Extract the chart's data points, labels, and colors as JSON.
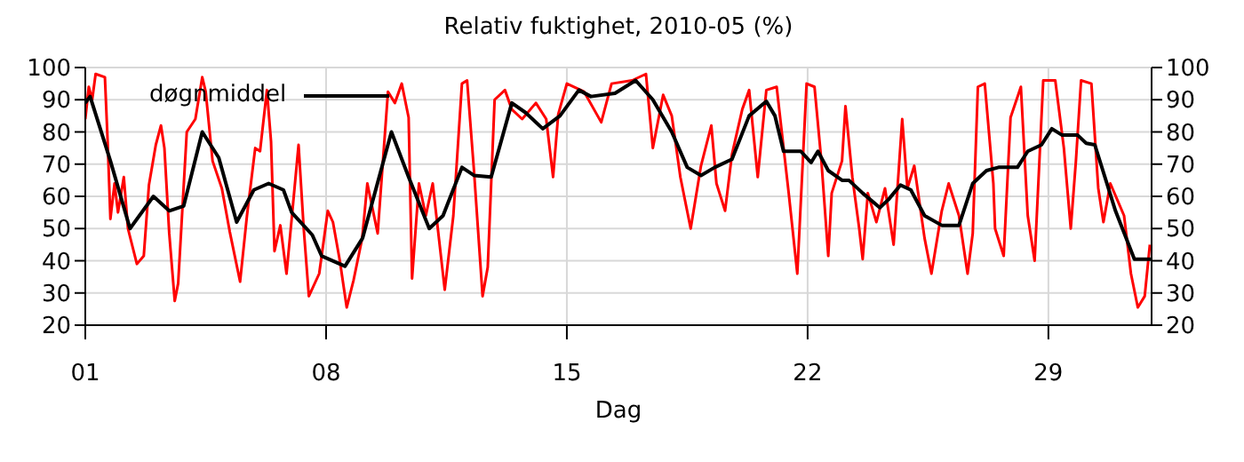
{
  "chart_data": {
    "type": "line",
    "title": "Relativ fuktighet, 2010-05 (%)",
    "xlabel": "Dag",
    "xlim": [
      1,
      32
    ],
    "xticks": [
      {
        "value": 1,
        "label": "01"
      },
      {
        "value": 8,
        "label": "08"
      },
      {
        "value": 15,
        "label": "15"
      },
      {
        "value": 22,
        "label": "22"
      },
      {
        "value": 29,
        "label": "29"
      }
    ],
    "ylim": [
      20,
      100
    ],
    "yticks": [
      20,
      30,
      40,
      50,
      60,
      70,
      80,
      90,
      100
    ],
    "y2lim": [
      20,
      100
    ],
    "y2ticks": [
      20,
      30,
      40,
      50,
      60,
      70,
      80,
      90,
      100
    ],
    "grid": true,
    "legend": "top left",
    "marker": "none",
    "line_style": "solid",
    "series": [
      {
        "color": "#ff0000",
        "x": [
          1.0,
          1.1,
          1.2,
          1.3,
          1.57,
          1.65,
          1.73,
          1.85,
          1.95,
          2.12,
          2.24,
          2.5,
          2.7,
          2.85,
          3.05,
          3.2,
          3.3,
          3.44,
          3.6,
          3.7,
          3.95,
          4.2,
          4.4,
          4.5,
          4.7,
          4.97,
          5.2,
          5.5,
          5.7,
          5.94,
          6.08,
          6.28,
          6.4,
          6.5,
          6.67,
          6.85,
          7.0,
          7.2,
          7.35,
          7.5,
          7.8,
          8.05,
          8.2,
          8.4,
          8.6,
          8.8,
          9.05,
          9.2,
          9.5,
          9.8,
          10.0,
          10.2,
          10.4,
          10.5,
          10.7,
          10.9,
          11.1,
          11.45,
          11.7,
          11.95,
          12.1,
          12.3,
          12.55,
          12.7,
          12.9,
          13.2,
          13.4,
          13.7,
          14.1,
          14.4,
          14.6,
          14.75,
          15.0,
          15.5,
          16.0,
          16.3,
          16.9,
          17.3,
          17.5,
          17.8,
          18.05,
          18.3,
          18.6,
          18.9,
          19.2,
          19.35,
          19.6,
          19.8,
          20.1,
          20.3,
          20.55,
          20.8,
          21.1,
          21.45,
          21.7,
          21.97,
          22.2,
          22.4,
          22.6,
          22.7,
          23.0,
          23.1,
          23.3,
          23.5,
          23.6,
          23.75,
          24.0,
          24.25,
          24.5,
          24.75,
          24.9,
          25.1,
          25.4,
          25.6,
          25.9,
          26.1,
          26.4,
          26.65,
          26.8,
          26.95,
          27.15,
          27.4,
          27.45,
          27.7,
          27.9,
          28.2,
          28.4,
          28.6,
          28.85,
          29.2,
          29.45,
          29.65,
          29.8,
          29.95,
          30.25,
          30.45,
          30.6,
          30.8,
          31.0,
          31.2,
          31.4,
          31.6,
          31.8,
          31.95
        ],
        "values": [
          84,
          94,
          90,
          98,
          97,
          77,
          53,
          64,
          55,
          66,
          50,
          39,
          41.5,
          63.5,
          76,
          82,
          75,
          48.5,
          27.5,
          33,
          80,
          84,
          97,
          92.5,
          71,
          62.5,
          49,
          33.5,
          54,
          75,
          74,
          93,
          77,
          43,
          51,
          36,
          53,
          76,
          50,
          29,
          36,
          55.5,
          52,
          40,
          25.5,
          34,
          47,
          64,
          48.5,
          92.5,
          89,
          95,
          84.5,
          34.5,
          64,
          54,
          64,
          31,
          54,
          95,
          96,
          68,
          29,
          38,
          90,
          93,
          87,
          84,
          89,
          84,
          66,
          85.5,
          95,
          92.5,
          83,
          95,
          96,
          98,
          75,
          91.5,
          85,
          66,
          50,
          69.5,
          82,
          64,
          55.5,
          73,
          87,
          93,
          66,
          93,
          94,
          61,
          36,
          95,
          94,
          71,
          41.5,
          61,
          71,
          88,
          66,
          50,
          40.5,
          61,
          52,
          62.5,
          45,
          84,
          62.5,
          69.5,
          47,
          36,
          55.5,
          64,
          54,
          36,
          48.5,
          94,
          95,
          64,
          50,
          41.5,
          84.5,
          94,
          54,
          40,
          96,
          96,
          75,
          50,
          71,
          96,
          95,
          62.5,
          52,
          64,
          59,
          54,
          36,
          25.5,
          29,
          45
        ]
      },
      {
        "name": "døgnmiddel",
        "color": "#000000",
        "x": [
          1.0,
          1.14,
          1.73,
          2.3,
          2.98,
          3.44,
          3.86,
          4.4,
          4.88,
          5.4,
          5.9,
          6.33,
          6.76,
          7.0,
          7.6,
          7.87,
          8.55,
          9.06,
          9.9,
          10.4,
          11.0,
          11.4,
          11.95,
          12.3,
          12.8,
          13.4,
          13.8,
          14.3,
          14.8,
          15.35,
          15.7,
          16.4,
          17.0,
          17.5,
          18.05,
          18.5,
          18.9,
          19.3,
          19.8,
          20.3,
          20.8,
          21.05,
          21.3,
          21.8,
          22.1,
          22.3,
          22.6,
          23.0,
          23.2,
          23.6,
          24.1,
          24.35,
          24.7,
          25.0,
          25.4,
          25.9,
          26.4,
          26.8,
          27.2,
          27.55,
          28.1,
          28.4,
          28.8,
          29.1,
          29.4,
          29.85,
          30.1,
          30.35,
          30.95,
          31.5,
          32.0
        ],
        "values": [
          89,
          91,
          71,
          50,
          60,
          55.5,
          57,
          80,
          72,
          52,
          62,
          64,
          62,
          55,
          48,
          41.5,
          38.3,
          47,
          80,
          66,
          50,
          54,
          69,
          66.5,
          66,
          89,
          86,
          81,
          85,
          93,
          91,
          92,
          96,
          90,
          80,
          69,
          66.5,
          69,
          71.5,
          85,
          89.5,
          85,
          74,
          74,
          70.5,
          74,
          68,
          65,
          65,
          61,
          56.5,
          59,
          63.5,
          62,
          54,
          51,
          51,
          64,
          68,
          69,
          69,
          74,
          76,
          81,
          79,
          79,
          76.5,
          76,
          55.5,
          40.5,
          40.5
        ]
      }
    ]
  }
}
